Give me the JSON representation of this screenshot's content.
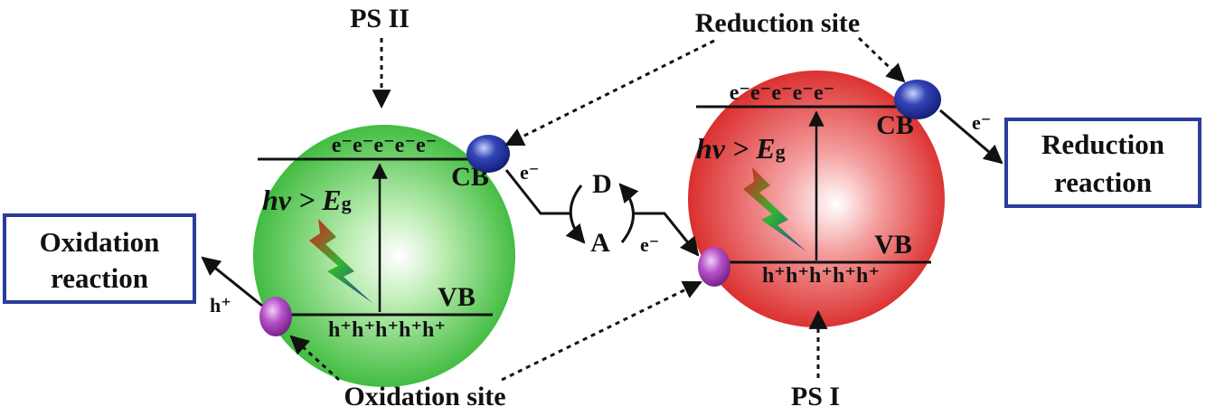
{
  "labels": {
    "ps2": "PS II",
    "ps1": "PS I",
    "reduction_site": "Reduction site",
    "oxidation_site": "Oxidation site",
    "oxidation_reaction_line1": "Oxidation",
    "oxidation_reaction_line2": "reaction",
    "reduction_reaction_line1": "Reduction",
    "reduction_reaction_line2": "reaction",
    "donor": "D",
    "acceptor": "A"
  },
  "ps2_particle": {
    "color": "#3cc43c",
    "electrons": "e⁻e⁻e⁻e⁻e⁻",
    "holes": "h⁺h⁺h⁺h⁺h⁺",
    "cb": "CB",
    "vb": "VB",
    "excitation_main": "hv > E",
    "excitation_sub": "g",
    "electron_out": "e⁻",
    "hole_out": "h⁺"
  },
  "ps1_particle": {
    "color": "#e02424",
    "electrons": "e⁻e⁻e⁻e⁻e⁻",
    "holes": "h⁺h⁺h⁺h⁺h⁺",
    "cb": "CB",
    "vb": "VB",
    "excitation_main": "hv > E",
    "excitation_sub": "g",
    "electron_in": "e⁻",
    "electron_out": "e⁻"
  },
  "colors": {
    "box_border": "#2a3c9c",
    "reduction_cocatalyst": "#2b3aa8",
    "oxidation_cocatalyst": "#b34bc4"
  }
}
